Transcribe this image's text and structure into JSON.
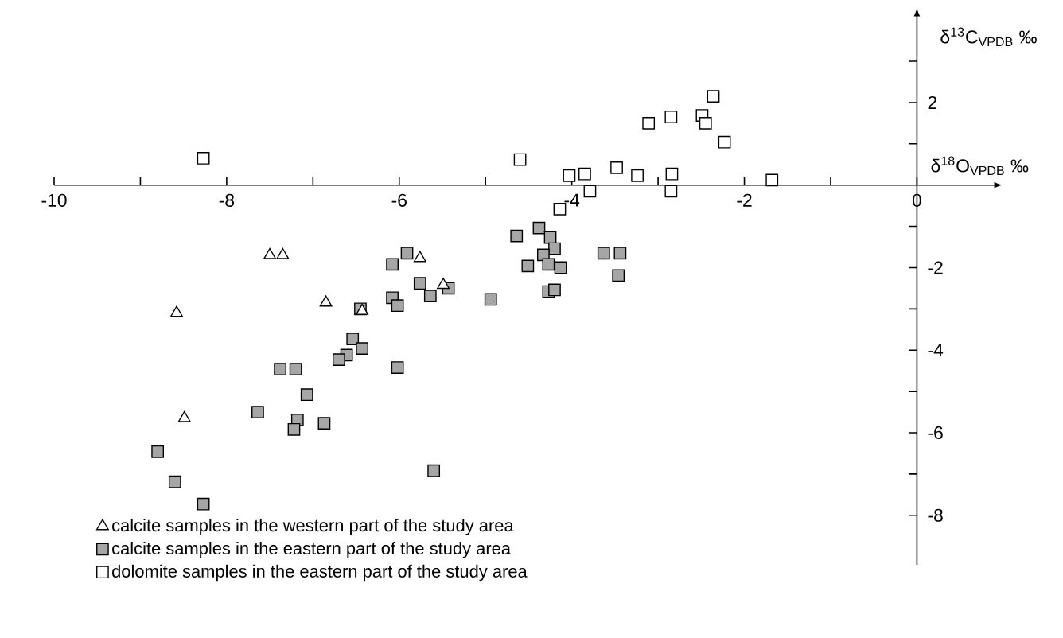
{
  "chart_data": {
    "type": "scatter",
    "xlabel": "δ$^{18}$O$_{VPDB}$ ‰",
    "ylabel": "δ$^{13}$C$_{VPDB}$ ‰",
    "xlim": [
      -10,
      0.9
    ],
    "ylim": [
      -9.2,
      4.1
    ],
    "xticks": [
      -10,
      {
        "value": -9,
        "label": null
      },
      -8,
      {
        "value": -7,
        "label": null
      },
      -6,
      {
        "value": -5,
        "label": null
      },
      -4,
      {
        "value": -3,
        "label": null
      },
      -2,
      {
        "value": -1,
        "label": null
      },
      0
    ],
    "yticks": [
      -8,
      {
        "value": -7,
        "label": null
      },
      -6,
      {
        "value": -5,
        "label": null
      },
      -4,
      {
        "value": -3,
        "label": null
      },
      -2,
      {
        "value": -1,
        "label": null
      },
      {
        "value": 1,
        "label": null
      },
      2,
      {
        "value": 3,
        "label": null
      }
    ],
    "legend": "bottom left",
    "grid": false,
    "series": [
      {
        "name": "calcite samples in the western part of the study area",
        "marker": "triangle",
        "color": "#000000",
        "x": [
          -8.58,
          -8.49,
          -7.5,
          -7.35,
          -6.85,
          -6.43,
          -5.76,
          -5.49
        ],
        "values": [
          -3.1,
          -5.65,
          -1.7,
          -1.7,
          -2.85,
          -3.05,
          -1.77,
          -2.42
        ]
      },
      {
        "name": "calcite samples in the eastern part of the study area",
        "marker": "square",
        "color": "#a6a6a6",
        "x": [
          -4.64,
          -4.38,
          -4.25,
          -4.2,
          -4.33,
          -4.51,
          -4.27,
          -4.13,
          -4.27,
          -4.2,
          -4.94,
          -6.08,
          -5.91,
          -5.76,
          -5.64,
          -5.43,
          -6.08,
          -6.02,
          -6.45,
          -6.54,
          -6.43,
          -6.61,
          -6.7,
          -6.02,
          -7.38,
          -7.2,
          -7.07,
          -7.64,
          -7.18,
          -7.22,
          -6.87,
          -8.8,
          -8.6,
          -8.27,
          -5.6,
          -3.63,
          -3.44,
          -3.46
        ],
        "values": [
          -1.23,
          -1.04,
          -1.27,
          -1.54,
          -1.69,
          -1.96,
          -1.92,
          -2.0,
          -2.58,
          -2.54,
          -2.77,
          -1.92,
          -1.65,
          -2.38,
          -2.69,
          -2.5,
          -2.73,
          -2.92,
          -3.0,
          -3.73,
          -3.96,
          -4.12,
          -4.23,
          -4.42,
          -4.46,
          -4.46,
          -5.08,
          -5.5,
          -5.69,
          -5.92,
          -5.77,
          -6.46,
          -7.19,
          -7.73,
          -6.92,
          -1.65,
          -1.65,
          -2.19
        ]
      },
      {
        "name": "dolomite samples in the eastern part of the study area",
        "marker": "square",
        "color": "#000000",
        "x": [
          -8.27,
          -4.6,
          -2.36,
          -3.11,
          -2.85,
          -2.49,
          -2.45,
          -2.23,
          -4.03,
          -3.85,
          -3.79,
          -3.48,
          -3.24,
          -2.84,
          -2.85,
          -1.68,
          -4.14
        ],
        "values": [
          0.65,
          0.62,
          2.15,
          1.5,
          1.65,
          1.69,
          1.5,
          1.04,
          0.23,
          0.27,
          -0.15,
          0.42,
          0.23,
          0.27,
          -0.15,
          0.12,
          -0.58
        ]
      }
    ]
  }
}
